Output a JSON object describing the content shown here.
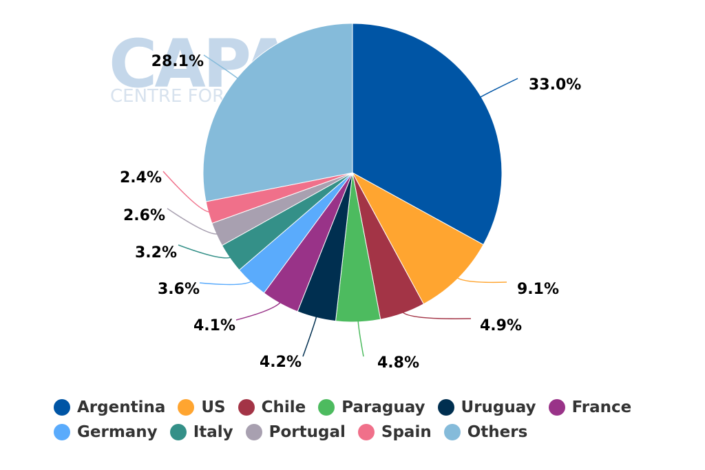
{
  "watermark": {
    "logo": "CAPA",
    "tagline": "CENTRE FOR AVIATION"
  },
  "chart_data": {
    "type": "pie",
    "title": "",
    "labels": [
      "Argentina",
      "US",
      "Chile",
      "Paraguay",
      "Uruguay",
      "France",
      "Germany",
      "Italy",
      "Portugal",
      "Spain",
      "Others"
    ],
    "values": [
      33.0,
      9.1,
      4.9,
      4.8,
      4.2,
      4.1,
      3.6,
      3.2,
      2.6,
      2.4,
      28.1
    ],
    "data_labels": [
      "33.0%",
      "9.1%",
      "4.9%",
      "4.8%",
      "4.2%",
      "4.1%",
      "3.6%",
      "3.2%",
      "2.6%",
      "2.4%",
      "28.1%"
    ],
    "colors": [
      "#0055a5",
      "#ffa530",
      "#a33446",
      "#4dbb5f",
      "#002f50",
      "#993388",
      "#5aabfc",
      "#349088",
      "#a8a0b0",
      "#f0708a",
      "#85bbda"
    ],
    "legend_position": "bottom",
    "start_angle": "12 o'clock, clockwise"
  }
}
